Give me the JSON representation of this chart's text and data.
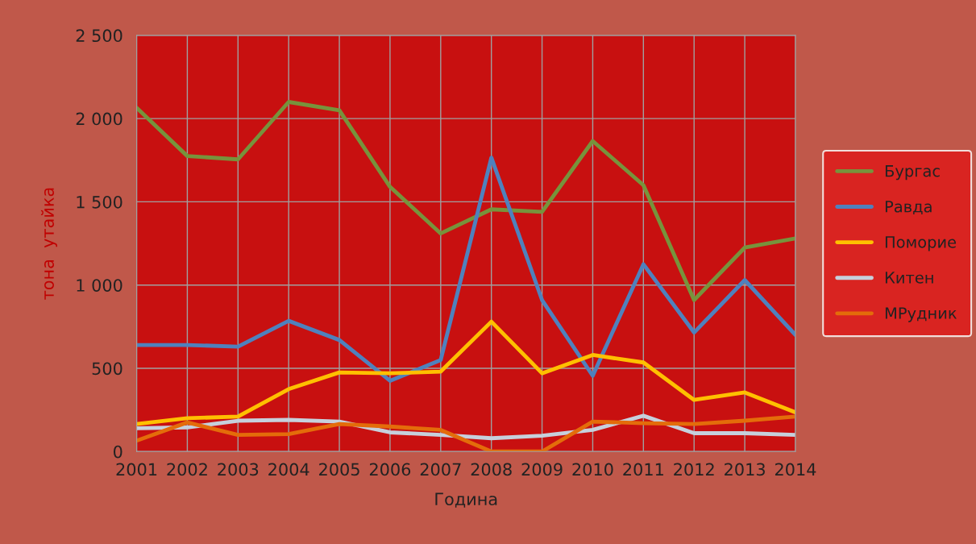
{
  "chart_data": {
    "type": "line",
    "categories": [
      "2001",
      "2002",
      "2003",
      "2004",
      "2005",
      "2006",
      "2007",
      "2008",
      "2009",
      "2010",
      "2011",
      "2012",
      "2013",
      "2014"
    ],
    "xlabel": "Година",
    "ylabel": "тона  утайка",
    "ylim": [
      0,
      2500
    ],
    "yticks": [
      0,
      500,
      {
        "value": 1000,
        "label": "1 000"
      },
      {
        "value": 1500,
        "label": "1 500"
      },
      {
        "value": 2000,
        "label": "2 000"
      },
      {
        "value": 2500,
        "label": "2 500"
      }
    ],
    "grid": true,
    "legend": "right",
    "marker": "none",
    "line_style": "solid",
    "series": [
      {
        "name": "Бургас",
        "color": "#77933c",
        "values": [
          2065,
          1775,
          1755,
          2100,
          2050,
          1590,
          1310,
          1455,
          1440,
          1865,
          1600,
          910,
          1225,
          1280
        ]
      },
      {
        "name": "Равда",
        "color": "#4f81bd",
        "values": [
          640,
          640,
          630,
          785,
          670,
          425,
          550,
          1765,
          910,
          455,
          1125,
          715,
          1030,
          700
        ]
      },
      {
        "name": "Поморие",
        "color": "#ffc000",
        "values": [
          165,
          200,
          210,
          375,
          475,
          470,
          480,
          780,
          470,
          580,
          535,
          310,
          355,
          235
        ]
      },
      {
        "name": "Китен",
        "color": "#c6d0dc",
        "values": [
          140,
          145,
          185,
          190,
          180,
          115,
          100,
          80,
          95,
          130,
          215,
          110,
          110,
          100
        ]
      },
      {
        "name": "МРудник",
        "color": "#e46c0a",
        "values": [
          65,
          175,
          100,
          105,
          165,
          150,
          130,
          0,
          0,
          180,
          170,
          165,
          185,
          210
        ]
      }
    ]
  }
}
